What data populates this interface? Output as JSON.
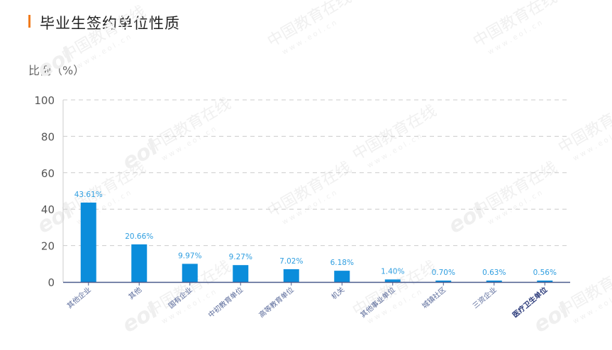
{
  "title": "毕业生签约单位性质",
  "accent_color": "#f07b1d",
  "bar_color": "#0b8ddb",
  "label_color": "#2f9ee0",
  "watermark": {
    "text": "中国教育在线",
    "sub": "w w w . e o l . c n",
    "logo": "eol"
  },
  "chart_data": {
    "type": "bar",
    "title": "毕业生签约单位性质",
    "xlabel": "",
    "ylabel": "比例（%）",
    "ylim": [
      0,
      100
    ],
    "yticks": [
      0,
      20,
      40,
      60,
      80,
      100
    ],
    "grid": true,
    "legend": null,
    "categories": [
      "其他企业",
      "其他",
      "国有企业",
      "中初教育单位",
      "高等教育单位",
      "机关",
      "其他事业单位",
      "城镇社区",
      "三资企业",
      "医疗卫生单位"
    ],
    "values": [
      43.61,
      20.66,
      9.97,
      9.27,
      7.02,
      6.18,
      1.4,
      0.7,
      0.63,
      0.56
    ],
    "data_labels": [
      "43.61%",
      "20.66%",
      "9.97%",
      "9.27%",
      "7.02%",
      "6.18%",
      "1.40%",
      "0.70%",
      "0.63%",
      "0.56%"
    ]
  }
}
